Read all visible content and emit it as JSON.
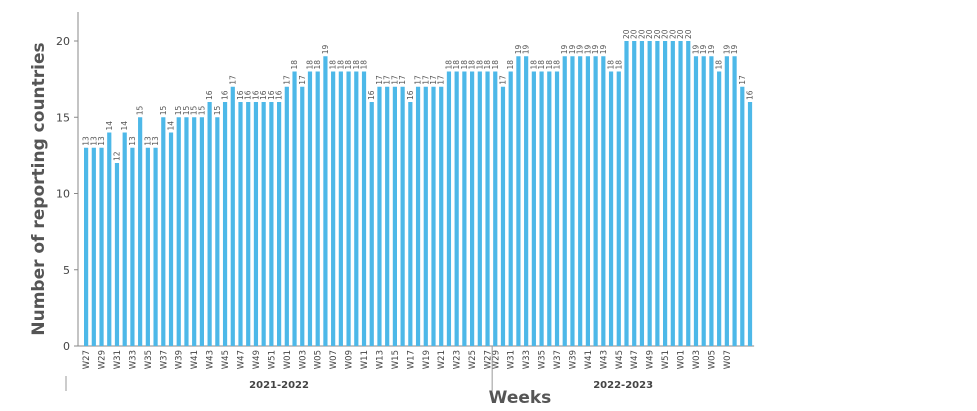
{
  "chart_data": {
    "type": "bar",
    "title": "",
    "xlabel": "Weeks",
    "ylabel": "Number of reporting countries",
    "ylim": [
      0,
      22
    ],
    "yticks": [
      0,
      5,
      10,
      15,
      20
    ],
    "grid": false,
    "bar_color": "#4db8e8",
    "seasons": [
      {
        "label": "2021-2022",
        "start_index": 0,
        "end_index": 52
      },
      {
        "label": "2022-2023",
        "start_index": 53,
        "end_index": 85
      }
    ],
    "categories": [
      "W27",
      "W28",
      "W29",
      "W30",
      "W31",
      "W32",
      "W33",
      "W34",
      "W35",
      "W36",
      "W37",
      "W38",
      "W39",
      "W40",
      "W41",
      "W42",
      "W43",
      "W44",
      "W45",
      "W46",
      "W47",
      "W48",
      "W49",
      "W50",
      "W51",
      "W52",
      "W01",
      "W02",
      "W03",
      "W04",
      "W05",
      "W06",
      "W07",
      "W08",
      "W09",
      "W10",
      "W11",
      "W12",
      "W13",
      "W14",
      "W15",
      "W16",
      "W17",
      "W18",
      "W19",
      "W20",
      "W21",
      "W22",
      "W23",
      "W24",
      "W25",
      "W26",
      "W27",
      "W27",
      "W28",
      "W29",
      "W30",
      "W31",
      "W32",
      "W33",
      "W34",
      "W35",
      "W36",
      "W37",
      "W38",
      "W39",
      "W40",
      "W41",
      "W42",
      "W43",
      "W44",
      "W45",
      "W46",
      "W47",
      "W48",
      "W49",
      "W50",
      "W51",
      "W52",
      "W01",
      "W02",
      "W03",
      "W04",
      "W05",
      "W06",
      "W07",
      "W08"
    ],
    "values": [
      13,
      13,
      13,
      14,
      12,
      14,
      13,
      15,
      13,
      13,
      15,
      14,
      15,
      15,
      15,
      15,
      16,
      15,
      16,
      17,
      16,
      16,
      16,
      16,
      16,
      16,
      17,
      18,
      17,
      18,
      18,
      19,
      18,
      18,
      18,
      18,
      18,
      16,
      17,
      17,
      17,
      17,
      16,
      17,
      17,
      17,
      17,
      18,
      18,
      18,
      18,
      18,
      18,
      18,
      17,
      18,
      19,
      19,
      18,
      18,
      18,
      18,
      19,
      19,
      19,
      19,
      19,
      19,
      18,
      18,
      20,
      20,
      20,
      20,
      20,
      20,
      20,
      20,
      20,
      19,
      19,
      19,
      18,
      19,
      19,
      17,
      16
    ],
    "xtick_labels_shown": [
      "W27",
      "W29",
      "W31",
      "W33",
      "W35",
      "W37",
      "W39",
      "W41",
      "W43",
      "W45",
      "W47",
      "W49",
      "W51",
      "W01",
      "W03",
      "W05",
      "W07",
      "W09",
      "W11",
      "W13",
      "W15",
      "W17",
      "W19",
      "W21",
      "W23",
      "W25",
      "W27",
      "W29",
      "W31",
      "W33",
      "W35",
      "W37",
      "W39",
      "W41",
      "W43",
      "W45",
      "W47",
      "W49",
      "W51",
      "W01",
      "W03",
      "W05",
      "W07"
    ]
  }
}
